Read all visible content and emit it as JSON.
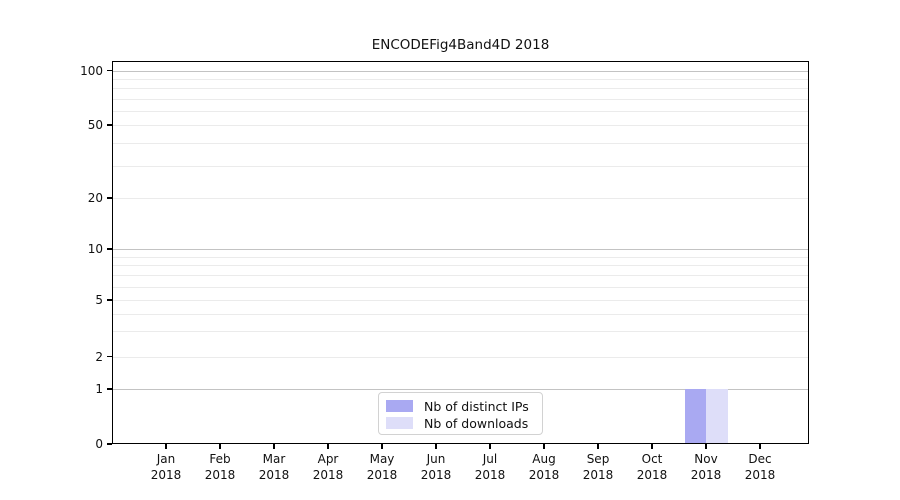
{
  "figure": {
    "title": "ENCODEFig4Band4D 2018",
    "background": "#ffffff"
  },
  "chart_data": {
    "type": "bar",
    "title": "ENCODEFig4Band4D 2018",
    "xlabel": "",
    "ylabel": "",
    "categories": [
      "Jan 2018",
      "Feb 2018",
      "Mar 2018",
      "Apr 2018",
      "May 2018",
      "Jun 2018",
      "Jul 2018",
      "Aug 2018",
      "Sep 2018",
      "Oct 2018",
      "Nov 2018",
      "Dec 2018"
    ],
    "series": [
      {
        "name": "Nb of distinct IPs",
        "color": "#a9a9f2",
        "values": [
          0,
          0,
          0,
          0,
          0,
          0,
          0,
          0,
          0,
          0,
          1,
          0
        ]
      },
      {
        "name": "Nb of downloads",
        "color": "#dedef9",
        "values": [
          0,
          0,
          0,
          0,
          0,
          0,
          0,
          0,
          0,
          0,
          1,
          0
        ]
      }
    ],
    "y_axis": {
      "scale": "symlog-like",
      "tick_values": [
        0,
        1,
        2,
        5,
        10,
        20,
        50,
        100
      ],
      "tick_labels": [
        "0",
        "1",
        "2",
        "5",
        "10",
        "20",
        "50",
        "100"
      ],
      "decade_gridline_values": [
        1,
        10,
        100
      ],
      "minor_gridline_values": [
        3,
        4,
        6,
        7,
        8,
        9,
        30,
        40,
        60,
        70,
        80,
        90
      ],
      "ylim": [
        0,
        107
      ],
      "grid": true
    },
    "x_axis": {
      "tick_label_line2": "2018",
      "months": [
        "Jan",
        "Feb",
        "Mar",
        "Apr",
        "May",
        "Jun",
        "Jul",
        "Aug",
        "Sep",
        "Oct",
        "Nov",
        "Dec"
      ]
    },
    "legend": {
      "position": "lower-center",
      "entries": [
        "Nb of distinct IPs",
        "Nb of downloads"
      ]
    }
  },
  "colors": {
    "bar_distinct_ips": "#a9a9f2",
    "bar_downloads": "#dedef9",
    "grid_major": "#c3c3c3",
    "grid_minor": "#ebebeb",
    "spine": "#000000",
    "legend_border": "#d2d2d2",
    "text": "#111111",
    "background": "#ffffff"
  }
}
